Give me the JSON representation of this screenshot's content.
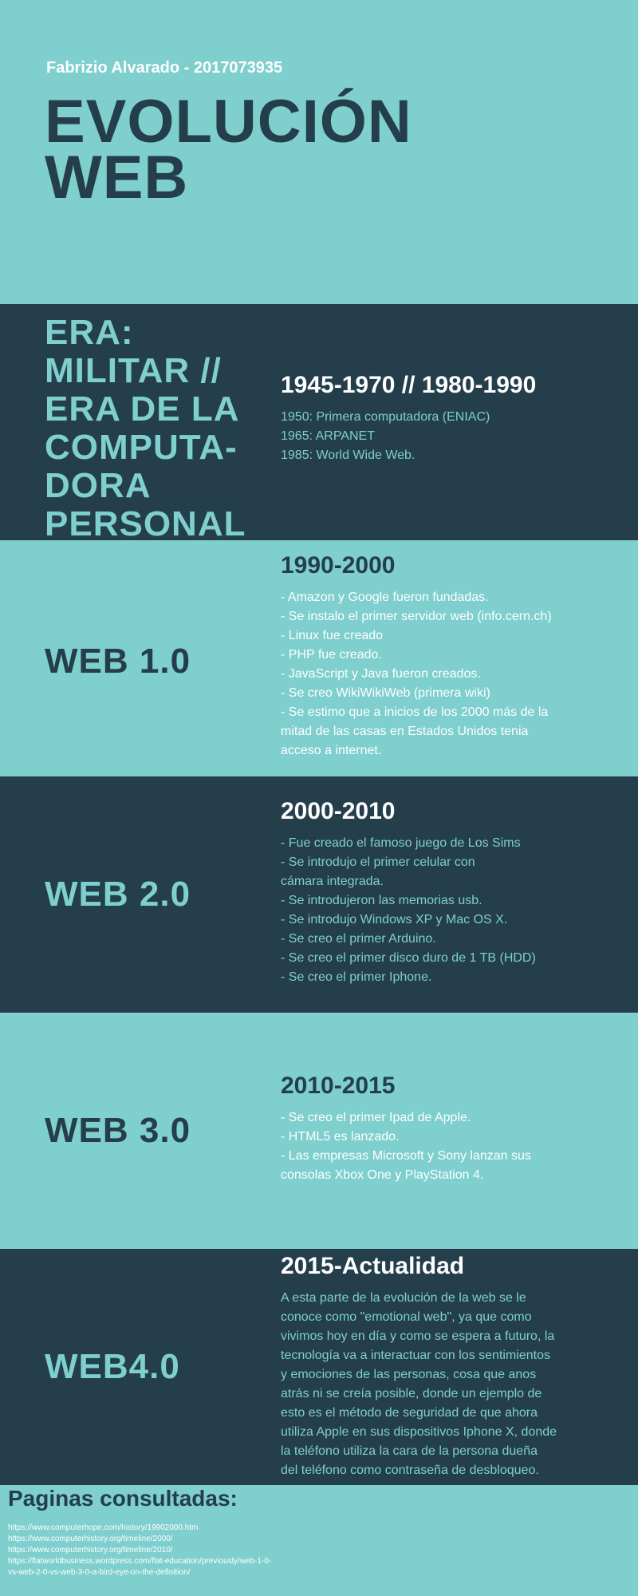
{
  "header": {
    "author": "Fabrizio Alvarado - 2017073935",
    "title_line1": "EVOLUCIÓN",
    "title_line2": "WEB"
  },
  "colors": {
    "dark": "#243e4c",
    "teal": "#7ecfce",
    "white": "#ffffff"
  },
  "sections": [
    {
      "title_lines": [
        "ERA:",
        "MILITAR //",
        "ERA DE LA",
        "COMPUTA-",
        "DORA",
        "PERSONAL"
      ],
      "period": "1945-1970 // 1980-1990",
      "lines": [
        "1950: Primera computadora (ENIAC)",
        "1965: ARPANET",
        "1985: World Wide Web."
      ]
    },
    {
      "title": "WEB 1.0",
      "period": "1990-2000",
      "lines": [
        "- Amazon y Google fueron fundadas.",
        "- Se instalo el primer servidor web (info.cern.ch)",
        "- Linux fue creado",
        "- PHP fue creado.",
        "- JavaScript y Java fueron creados.",
        "- Se creo WikiWikiWeb (primera wiki)",
        "- Se estimo que a inicios de los 2000 más de la",
        "mitad de las casas en Estados Unidos tenia",
        "acceso a internet."
      ]
    },
    {
      "title": "WEB 2.0",
      "period": "2000-2010",
      "lines": [
        "- Fue creado el famoso juego de Los Sims",
        "- Se introdujo el primer celular con",
        "cámara integrada.",
        "- Se introdujeron las memorias usb.",
        "- Se introdujo Windows XP y Mac OS X.",
        "- Se creo el primer Arduino.",
        "- Se creo el primer disco duro de 1 TB (HDD)",
        "- Se creo el primer Iphone."
      ]
    },
    {
      "title": "WEB 3.0",
      "period": "2010-2015",
      "lines": [
        "- Se creo el primer Ipad de Apple.",
        "- HTML5 es lanzado.",
        "- Las empresas Microsoft y Sony lanzan sus",
        "consolas Xbox One y PlayStation 4."
      ]
    },
    {
      "title": "WEB4.0",
      "period": "2015-Actualidad",
      "lines": [
        "A esta parte de la evolución de la web se le",
        "conoce como \"emotional web\", ya que como",
        "vivimos hoy en día y como se espera a futuro, la",
        "tecnología va a interactuar con los sentimientos",
        "y emociones de las personas, cosa que anos",
        "atrás ni se creía posible, donde un ejemplo de",
        "esto es el método de seguridad de que ahora",
        "utiliza Apple en sus dispositivos Iphone X, donde",
        "la teléfono utiliza la cara de la persona dueña",
        "del teléfono como contraseña de desbloqueo."
      ]
    }
  ],
  "references": {
    "title": "Paginas consultadas:",
    "links": [
      "https://www.computerhope.com/history/19902000.htm",
      "https://www.computerhistory.org/timeline/2000/",
      "https://www.computerhistory.org/timeline/2010/",
      "https://flatworldbusiness.wordpress.com/flat-education/previously/web-1-0-",
      "vs-web-2-0-vs-web-3-0-a-bird-eye-on-the-definition/"
    ]
  }
}
